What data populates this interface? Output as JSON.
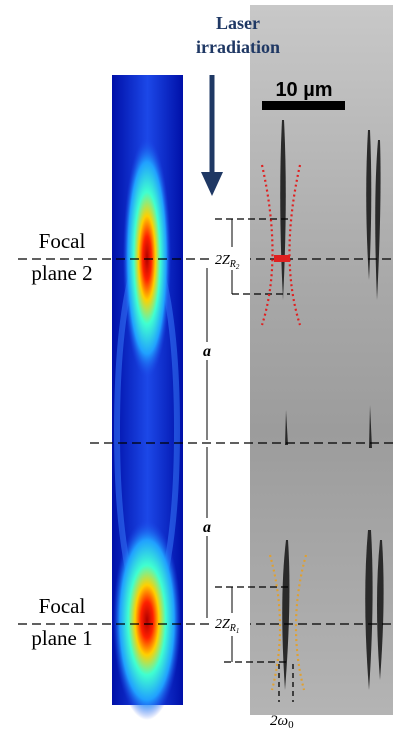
{
  "title": {
    "line1": "Laser",
    "line2": "irradiation"
  },
  "scale_bar": "10 µm",
  "focal_planes": [
    {
      "line1": "Focal",
      "line2": "plane 2"
    },
    {
      "line1": "Focal",
      "line2": "plane 1"
    }
  ],
  "rayleigh": [
    {
      "main": "2Z",
      "sub": "R",
      "subsub": "2"
    },
    {
      "main": "2Z",
      "sub": "R",
      "subsub": "1"
    }
  ],
  "spacing": [
    "a",
    "a"
  ],
  "waist": {
    "main": "2ω",
    "sub": "0"
  }
}
